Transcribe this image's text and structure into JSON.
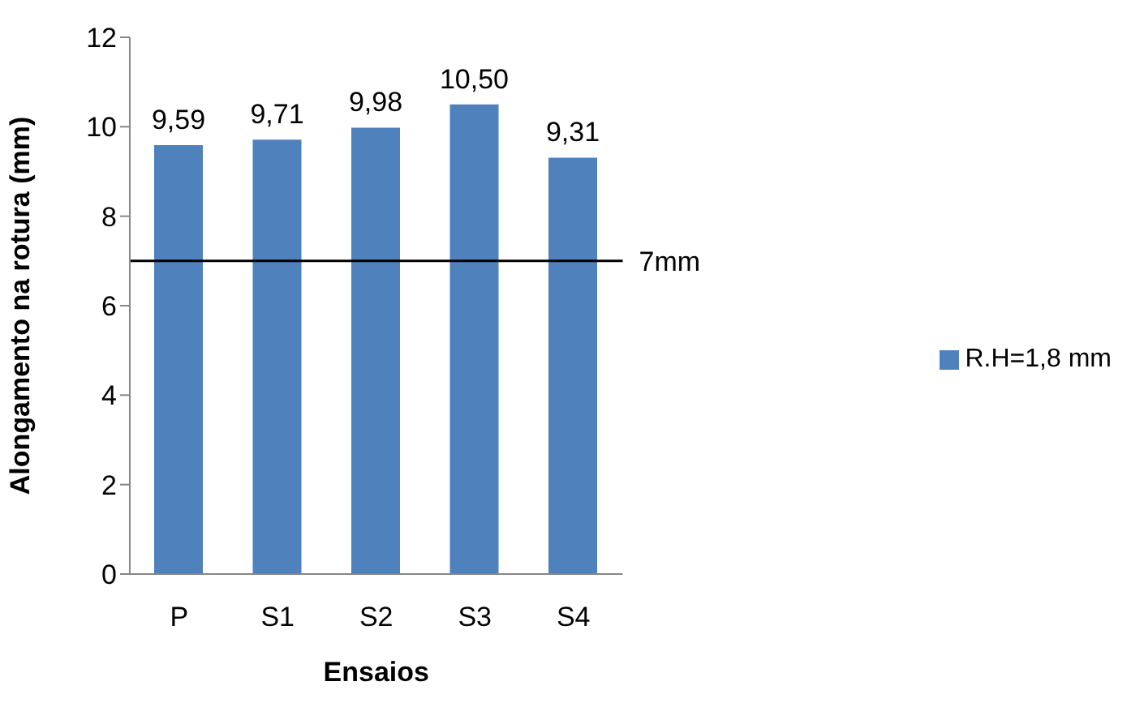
{
  "chart_data": {
    "type": "bar",
    "xlabel": "Ensaios",
    "ylabel": "Alongamento na rotura (mm)",
    "categories": [
      "P",
      "S1",
      "S2",
      "S3",
      "S4"
    ],
    "series": [
      {
        "name": "R.H=1,8 mm",
        "color": "#4f81bd",
        "values": [
          9.59,
          9.71,
          9.98,
          10.5,
          9.31
        ],
        "value_labels": [
          "9,59",
          "9,71",
          "9,98",
          "10,50",
          "9,31"
        ]
      }
    ],
    "ylim": [
      0,
      12
    ],
    "yticks": [
      0,
      2,
      4,
      6,
      8,
      10,
      12
    ],
    "grid": false,
    "legend": "right",
    "ref_lines": [
      {
        "axis": "y",
        "value": 7,
        "label": "7mm",
        "color": "#000000"
      }
    ]
  }
}
